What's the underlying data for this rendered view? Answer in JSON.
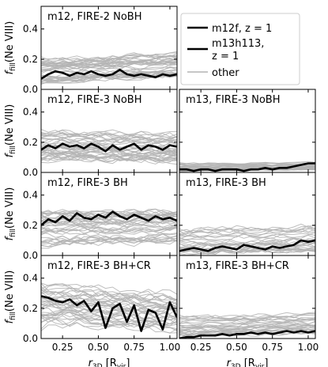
{
  "chart_data": {
    "type": "line",
    "shared": {
      "x_range": [
        0.1,
        1.05
      ],
      "y_range": [
        0,
        0.55
      ],
      "x_ticks": [
        0.25,
        0.5,
        0.75,
        1.0
      ],
      "x_tick_labels": [
        "0.25",
        "0.50",
        "0.75",
        "1.00"
      ],
      "y_ticks": [
        0,
        0.2,
        0.4
      ],
      "y_tick_labels": [
        "0.0",
        "0.2",
        "0.4"
      ],
      "x": [
        0.1,
        0.15,
        0.2,
        0.25,
        0.3,
        0.35,
        0.4,
        0.45,
        0.5,
        0.55,
        0.6,
        0.65,
        0.7,
        0.75,
        0.8,
        0.85,
        0.9,
        0.95,
        1.0,
        1.05
      ],
      "xlabel": {
        "main": "r",
        "sub": "3D",
        "unit_open": " [R",
        "unit_sub": "vir",
        "unit_close": "]"
      },
      "ylabel": {
        "main": "f",
        "sub": "fill",
        "rest": "(Ne VIII)"
      },
      "other_color": "#b3b3b3",
      "highlight_color": "#000000"
    },
    "legend": {
      "location": "top-right",
      "entries": [
        {
          "label_line1": "m12f, z = 1",
          "label_line2": "",
          "style": "thick-black"
        },
        {
          "label_line1": "m13h113,",
          "label_line2": "z = 1",
          "style": "thick-black"
        },
        {
          "label_line1": "other",
          "label_line2": "",
          "style": "thin-gray"
        }
      ]
    },
    "panels": [
      {
        "id": "m12-fire2-nobh",
        "row": 0,
        "col": 0,
        "title": "m12, FIRE-2 NoBH",
        "show_ylabel": true,
        "show_xlabel": false,
        "highlight": [
          0.07,
          0.1,
          0.12,
          0.11,
          0.09,
          0.11,
          0.1,
          0.12,
          0.1,
          0.09,
          0.1,
          0.13,
          0.1,
          0.09,
          0.1,
          0.09,
          0.08,
          0.1,
          0.09,
          0.1
        ],
        "others_envelope": {
          "low": 0.03,
          "high": 0.3,
          "center_start": 0.08,
          "center_end": 0.18,
          "count": 40,
          "seed": 3
        }
      },
      {
        "id": "m12-fire3-nobh",
        "row": 1,
        "col": 0,
        "title": "m12, FIRE-3 NoBH",
        "show_ylabel": true,
        "show_xlabel": false,
        "highlight": [
          0.15,
          0.18,
          0.16,
          0.19,
          0.17,
          0.18,
          0.16,
          0.19,
          0.17,
          0.14,
          0.18,
          0.15,
          0.17,
          0.19,
          0.15,
          0.18,
          0.17,
          0.15,
          0.18,
          0.17
        ],
        "others_envelope": {
          "low": 0.03,
          "high": 0.38,
          "center_start": 0.18,
          "center_end": 0.14,
          "count": 40,
          "seed": 11
        }
      },
      {
        "id": "m13-fire3-nobh",
        "row": 1,
        "col": 1,
        "title": "m13, FIRE-3 NoBH",
        "show_ylabel": false,
        "show_xlabel": false,
        "highlight": [
          0.02,
          0.02,
          0.01,
          0.02,
          0.02,
          0.01,
          0.02,
          0.02,
          0.02,
          0.01,
          0.02,
          0.02,
          0.03,
          0.02,
          0.03,
          0.03,
          0.04,
          0.05,
          0.06,
          0.06
        ],
        "others_envelope": {
          "low": 0.0,
          "high": 0.09,
          "center_start": 0.02,
          "center_end": 0.04,
          "count": 30,
          "seed": 19
        }
      },
      {
        "id": "m12-fire3-bh",
        "row": 2,
        "col": 0,
        "title": "m12, FIRE-3 BH",
        "show_ylabel": true,
        "show_xlabel": false,
        "highlight": [
          0.2,
          0.24,
          0.22,
          0.26,
          0.23,
          0.28,
          0.25,
          0.24,
          0.27,
          0.25,
          0.29,
          0.26,
          0.24,
          0.27,
          0.25,
          0.23,
          0.26,
          0.24,
          0.25,
          0.23
        ],
        "others_envelope": {
          "low": 0.03,
          "high": 0.4,
          "center_start": 0.15,
          "center_end": 0.17,
          "count": 40,
          "seed": 29
        }
      },
      {
        "id": "m13-fire3-bh",
        "row": 2,
        "col": 1,
        "title": "m13, FIRE-3 BH",
        "show_ylabel": false,
        "show_xlabel": false,
        "highlight": [
          0.03,
          0.04,
          0.05,
          0.04,
          0.03,
          0.05,
          0.06,
          0.05,
          0.04,
          0.07,
          0.06,
          0.05,
          0.04,
          0.06,
          0.05,
          0.06,
          0.07,
          0.1,
          0.09,
          0.1
        ],
        "others_envelope": {
          "low": 0.0,
          "high": 0.3,
          "center_start": 0.04,
          "center_end": 0.08,
          "count": 30,
          "seed": 37
        }
      },
      {
        "id": "m12-fire3-bhcr",
        "row": 3,
        "col": 0,
        "title": "m12, FIRE-3 BH+CR",
        "show_ylabel": true,
        "show_xlabel": true,
        "highlight": [
          0.28,
          0.27,
          0.25,
          0.24,
          0.26,
          0.22,
          0.25,
          0.18,
          0.24,
          0.07,
          0.2,
          0.23,
          0.11,
          0.22,
          0.05,
          0.19,
          0.17,
          0.06,
          0.24,
          0.14
        ],
        "others_envelope": {
          "low": 0.0,
          "high": 0.45,
          "center_start": 0.22,
          "center_end": 0.1,
          "count": 40,
          "seed": 43
        }
      },
      {
        "id": "m13-fire3-bhcr",
        "row": 3,
        "col": 1,
        "title": "m13, FIRE-3 BH+CR",
        "show_ylabel": false,
        "show_xlabel": true,
        "highlight": [
          0.0,
          0.01,
          0.01,
          0.02,
          0.02,
          0.02,
          0.03,
          0.02,
          0.03,
          0.03,
          0.04,
          0.03,
          0.04,
          0.03,
          0.04,
          0.05,
          0.04,
          0.05,
          0.04,
          0.05
        ],
        "others_envelope": {
          "low": 0.0,
          "high": 0.22,
          "center_start": 0.04,
          "center_end": 0.09,
          "count": 30,
          "seed": 53
        }
      }
    ]
  }
}
